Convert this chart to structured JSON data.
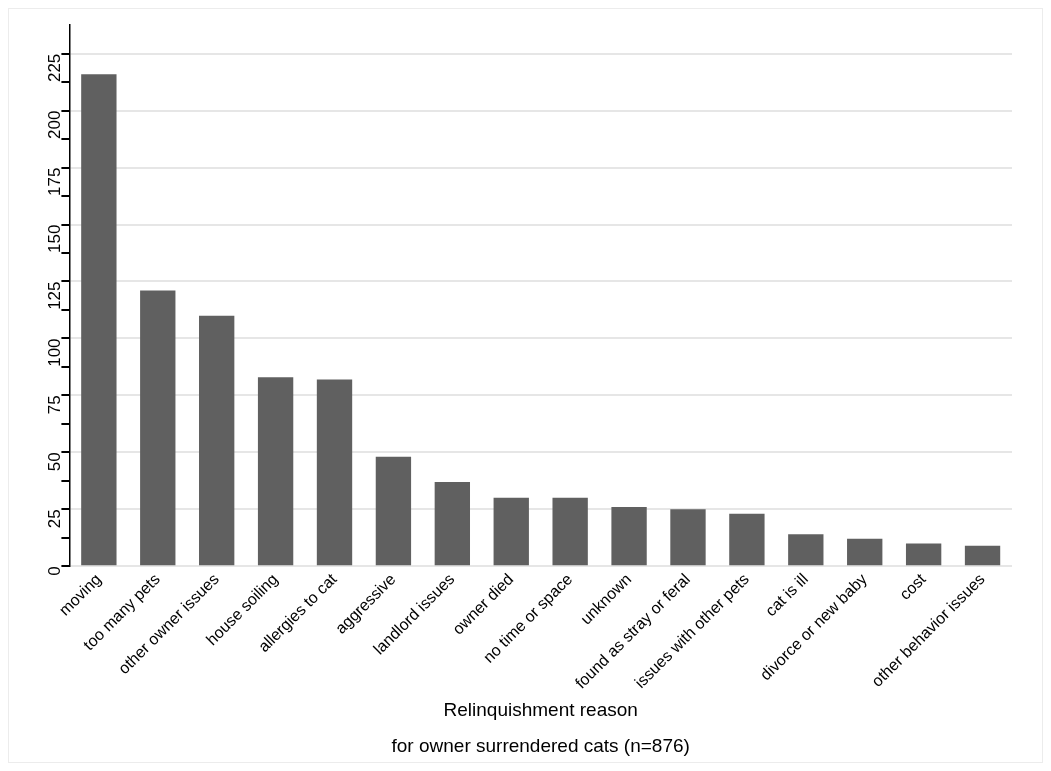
{
  "chart_data": {
    "type": "bar",
    "xlabel": "Relinquishment reason",
    "annotations": [
      "for owner surrendered cats (n=876)"
    ],
    "categories": [
      "moving",
      "too many pets",
      "other owner issues",
      "house soiling",
      "allergies to cat",
      "aggressive",
      "landlord issues",
      "owner died",
      "no time or space",
      "unknown",
      "found as stray or feral",
      "issues with other pets",
      "cat is ill",
      "divorce or new baby",
      "cost",
      "other behavior issues"
    ],
    "values": [
      216,
      121,
      110,
      83,
      82,
      48,
      37,
      30,
      30,
      26,
      25,
      23,
      14,
      12,
      10,
      9
    ],
    "color": "#606060",
    "ylim": [
      0,
      237.5
    ],
    "yticks": [
      0,
      {
        "value": 12.5,
        "label": null
      },
      25,
      {
        "value": 37.5,
        "label": null
      },
      50,
      {
        "value": 62.5,
        "label": null
      },
      75,
      {
        "value": 87.5,
        "label": null
      },
      100,
      {
        "value": 112.5,
        "label": null
      },
      125,
      {
        "value": 137.5,
        "label": null
      },
      150,
      {
        "value": 162.5,
        "label": null
      },
      175,
      {
        "value": 187.5,
        "label": null
      },
      200,
      {
        "value": 212.5,
        "label": null
      },
      225
    ],
    "grid": "y",
    "legend": false
  }
}
